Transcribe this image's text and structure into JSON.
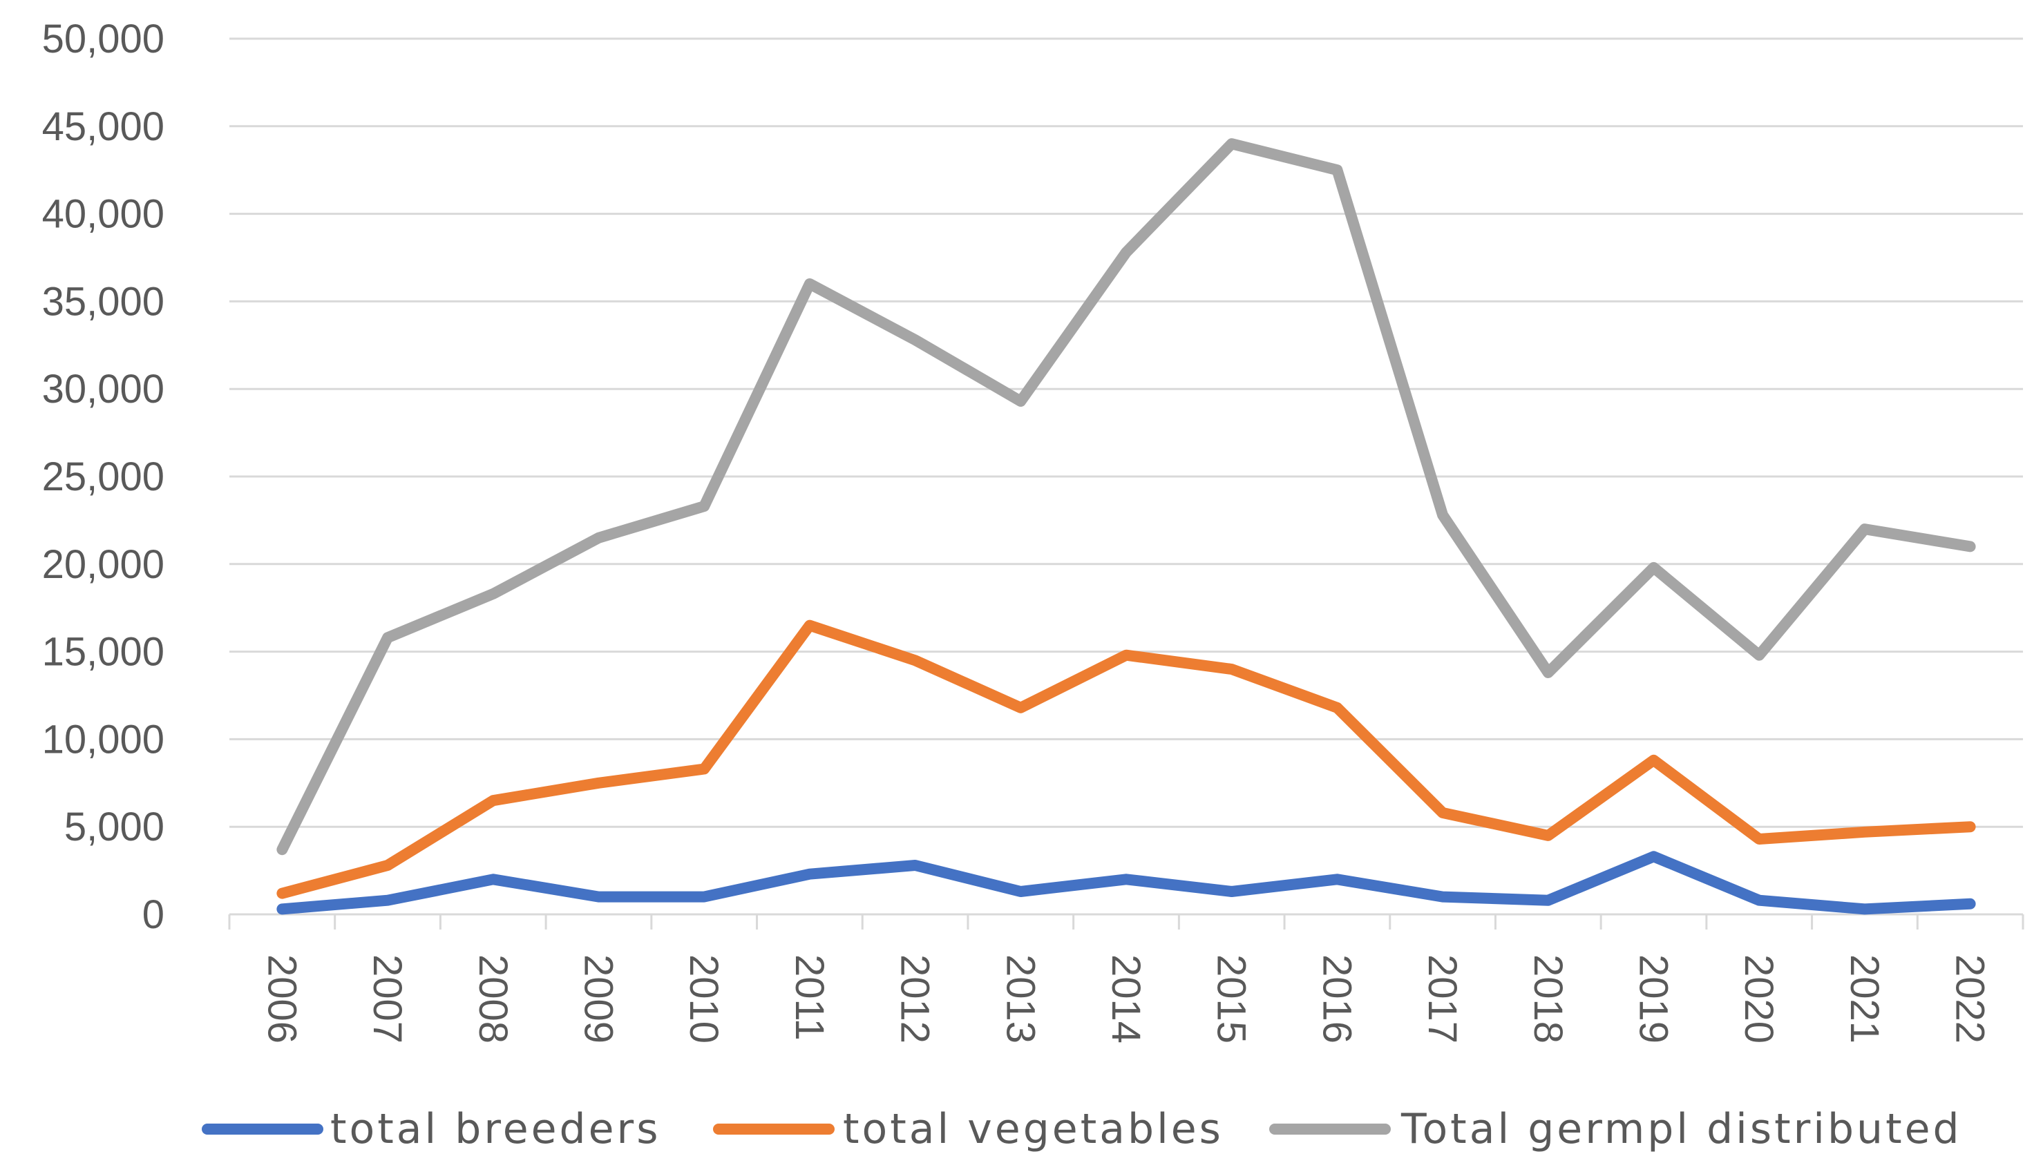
{
  "chart_data": {
    "type": "line",
    "title": "",
    "xlabel": "",
    "ylabel": "",
    "ylim": [
      0,
      50000
    ],
    "yticks": [
      0,
      5000,
      10000,
      15000,
      20000,
      25000,
      30000,
      35000,
      40000,
      45000,
      50000
    ],
    "ytick_labels": [
      "0",
      "5,000",
      "10,000",
      "15,000",
      "20,000",
      "25,000",
      "30,000",
      "35,000",
      "40,000",
      "45,000",
      "50,000"
    ],
    "categories": [
      "2006",
      "2007",
      "2008",
      "2009",
      "2010",
      "2011",
      "2012",
      "2013",
      "2014",
      "2015",
      "2016",
      "2017",
      "2018",
      "2019",
      "2020",
      "2021",
      "2022"
    ],
    "grid": true,
    "legend_position": "bottom",
    "series": [
      {
        "name": "total breeders",
        "color": "#4472c4",
        "values": [
          300,
          800,
          2000,
          1000,
          1000,
          2300,
          2800,
          1300,
          2000,
          1300,
          2000,
          1000,
          800,
          3300,
          800,
          300,
          600
        ]
      },
      {
        "name": "total vegetables",
        "color": "#ed7d31",
        "values": [
          1200,
          2800,
          6500,
          7500,
          8300,
          16500,
          14500,
          11800,
          14800,
          14000,
          11800,
          5800,
          4500,
          8800,
          4300,
          4700,
          5000
        ]
      },
      {
        "name": "Total germpl distributed",
        "color": "#a5a5a5",
        "values": [
          3700,
          15800,
          18300,
          21500,
          23300,
          36000,
          32800,
          29300,
          37800,
          44000,
          42500,
          22800,
          13800,
          19800,
          14800,
          22000,
          21000
        ]
      }
    ]
  }
}
